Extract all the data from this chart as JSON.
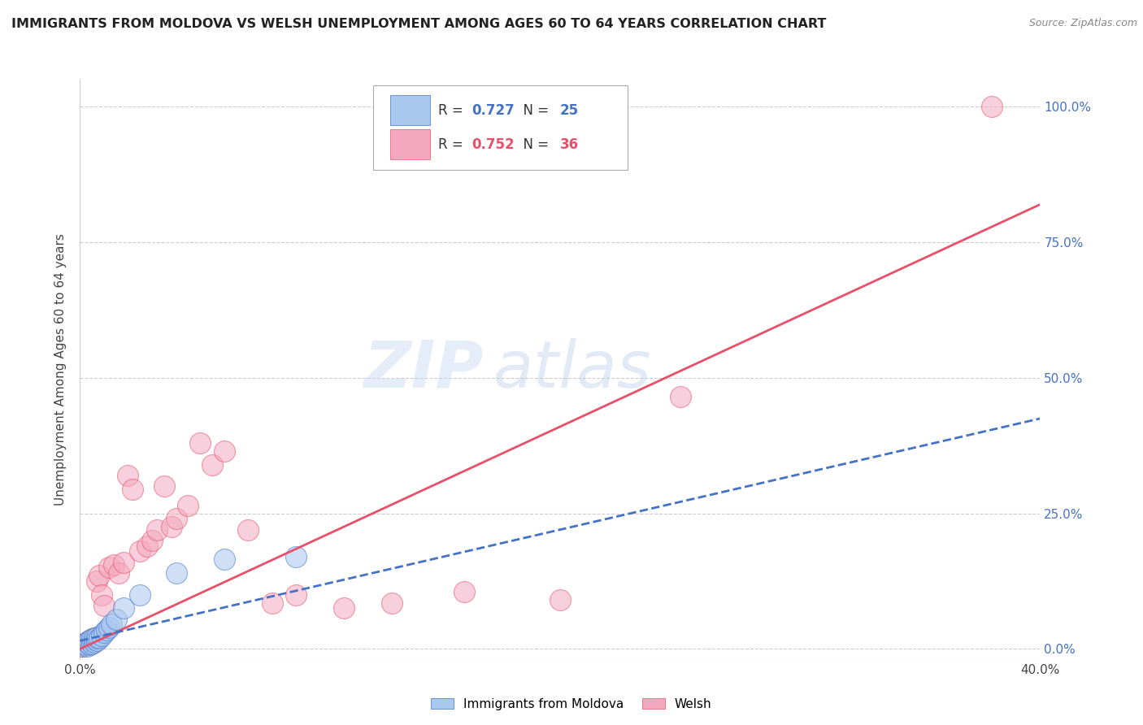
{
  "title": "IMMIGRANTS FROM MOLDOVA VS WELSH UNEMPLOYMENT AMONG AGES 60 TO 64 YEARS CORRELATION CHART",
  "source": "Source: ZipAtlas.com",
  "ylabel": "Unemployment Among Ages 60 to 64 years",
  "ytick_labels": [
    "0.0%",
    "25.0%",
    "50.0%",
    "75.0%",
    "100.0%"
  ],
  "ytick_values": [
    0.0,
    0.25,
    0.5,
    0.75,
    1.0
  ],
  "legend_label_blue": "Immigrants from Moldova",
  "legend_label_pink": "Welsh",
  "R_blue": "0.727",
  "N_blue": "25",
  "R_pink": "0.752",
  "N_pink": "36",
  "color_blue_fill": "#a8c8f0",
  "color_pink_fill": "#f4a8c0",
  "color_line_blue": "#4472c4",
  "color_line_pink": "#e8506a",
  "color_right_axis": "#4472c4",
  "watermark_zip": "ZIP",
  "watermark_atlas": "atlas",
  "xlim": [
    0.0,
    0.4
  ],
  "ylim": [
    -0.02,
    1.05
  ],
  "blue_scatter_x": [
    0.001,
    0.002,
    0.002,
    0.003,
    0.003,
    0.004,
    0.004,
    0.005,
    0.005,
    0.006,
    0.006,
    0.007,
    0.007,
    0.008,
    0.009,
    0.01,
    0.011,
    0.012,
    0.013,
    0.015,
    0.018,
    0.025,
    0.04,
    0.06,
    0.09
  ],
  "blue_scatter_y": [
    0.005,
    0.008,
    0.01,
    0.005,
    0.012,
    0.008,
    0.015,
    0.01,
    0.018,
    0.012,
    0.02,
    0.015,
    0.022,
    0.02,
    0.025,
    0.03,
    0.035,
    0.04,
    0.045,
    0.055,
    0.075,
    0.1,
    0.14,
    0.165,
    0.17
  ],
  "pink_scatter_x": [
    0.001,
    0.002,
    0.003,
    0.004,
    0.005,
    0.006,
    0.007,
    0.008,
    0.009,
    0.01,
    0.012,
    0.014,
    0.016,
    0.018,
    0.02,
    0.022,
    0.025,
    0.028,
    0.03,
    0.032,
    0.035,
    0.038,
    0.04,
    0.045,
    0.05,
    0.055,
    0.06,
    0.07,
    0.08,
    0.09,
    0.11,
    0.13,
    0.16,
    0.2,
    0.25,
    0.38
  ],
  "pink_scatter_y": [
    0.005,
    0.008,
    0.01,
    0.015,
    0.012,
    0.02,
    0.125,
    0.135,
    0.1,
    0.08,
    0.15,
    0.155,
    0.14,
    0.16,
    0.32,
    0.295,
    0.18,
    0.19,
    0.2,
    0.22,
    0.3,
    0.225,
    0.24,
    0.265,
    0.38,
    0.34,
    0.365,
    0.22,
    0.085,
    0.1,
    0.075,
    0.085,
    0.105,
    0.09,
    0.465,
    1.0
  ],
  "blue_line_x0": 0.0,
  "blue_line_x1": 0.4,
  "blue_line_y0": 0.015,
  "blue_line_y1": 0.425,
  "pink_line_x0": 0.0,
  "pink_line_x1": 0.4,
  "pink_line_y0": 0.0,
  "pink_line_y1": 0.82,
  "scatter_size": 350,
  "scatter_alpha": 0.55
}
